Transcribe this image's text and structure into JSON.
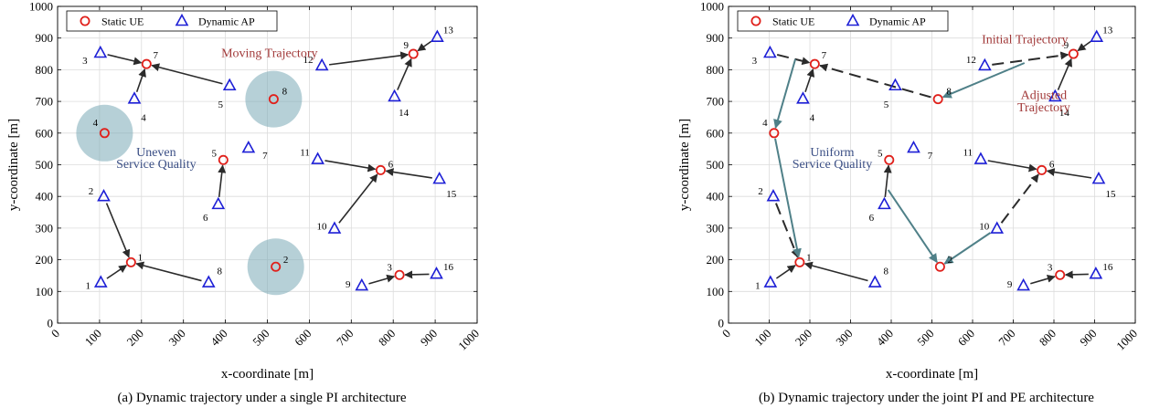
{
  "chart_data": [
    {
      "type": "scatter",
      "caption": "(a) Dynamic trajectory under a single PI architecture",
      "xlabel": "x-coordinate [m]",
      "ylabel": "y-coordinate [m]",
      "xlim": [
        0,
        1000
      ],
      "ylim": [
        0,
        1000
      ],
      "xticks": [
        "0",
        "100",
        "200",
        "300",
        "400",
        "500",
        "600",
        "700",
        "800",
        "900",
        "1000"
      ],
      "yticks": [
        "0",
        "100",
        "200",
        "300",
        "400",
        "500",
        "600",
        "700",
        "800",
        "900",
        "1000"
      ],
      "grid": true,
      "legend": {
        "placement": "top-left",
        "entries": [
          "Static UE",
          "Dynamic AP"
        ]
      },
      "ue": [
        {
          "id": "1",
          "x": 175,
          "y": 192
        },
        {
          "id": "2",
          "x": 520,
          "y": 178
        },
        {
          "id": "3",
          "x": 815,
          "y": 152
        },
        {
          "id": "4",
          "x": 112,
          "y": 600
        },
        {
          "id": "5",
          "x": 395,
          "y": 515
        },
        {
          "id": "6",
          "x": 770,
          "y": 483
        },
        {
          "id": "7",
          "x": 212,
          "y": 818
        },
        {
          "id": "8",
          "x": 515,
          "y": 707
        },
        {
          "id": "9",
          "x": 848,
          "y": 850
        }
      ],
      "ap": [
        {
          "id": "1",
          "x": 103,
          "y": 128
        },
        {
          "id": "2",
          "x": 110,
          "y": 400
        },
        {
          "id": "3",
          "x": 102,
          "y": 853
        },
        {
          "id": "4",
          "x": 183,
          "y": 708
        },
        {
          "id": "5",
          "x": 410,
          "y": 750
        },
        {
          "id": "6",
          "x": 383,
          "y": 375
        },
        {
          "id": "7",
          "x": 455,
          "y": 553
        },
        {
          "id": "8",
          "x": 360,
          "y": 128
        },
        {
          "id": "9",
          "x": 725,
          "y": 118
        },
        {
          "id": "10",
          "x": 660,
          "y": 298
        },
        {
          "id": "11",
          "x": 620,
          "y": 517
        },
        {
          "id": "12",
          "x": 630,
          "y": 813
        },
        {
          "id": "13",
          "x": 905,
          "y": 903
        },
        {
          "id": "14",
          "x": 803,
          "y": 715
        },
        {
          "id": "15",
          "x": 910,
          "y": 455
        },
        {
          "id": "16",
          "x": 903,
          "y": 155
        }
      ],
      "highlight_ues": [
        "2",
        "4",
        "8"
      ],
      "solid_arrows": [
        {
          "from": [
            103,
            128
          ],
          "to": [
            175,
            192
          ]
        },
        {
          "from": [
            360,
            128
          ],
          "to": [
            175,
            192
          ]
        },
        {
          "from": [
            110,
            400
          ],
          "to": [
            175,
            192
          ]
        },
        {
          "from": [
            102,
            853
          ],
          "to": [
            212,
            818
          ]
        },
        {
          "from": [
            183,
            708
          ],
          "to": [
            212,
            818
          ]
        },
        {
          "from": [
            410,
            750
          ],
          "to": [
            212,
            818
          ]
        },
        {
          "from": [
            383,
            375
          ],
          "to": [
            395,
            515
          ]
        },
        {
          "from": [
            630,
            813
          ],
          "to": [
            848,
            850
          ]
        },
        {
          "from": [
            905,
            903
          ],
          "to": [
            848,
            850
          ]
        },
        {
          "from": [
            803,
            715
          ],
          "to": [
            848,
            850
          ]
        },
        {
          "from": [
            620,
            517
          ],
          "to": [
            770,
            483
          ]
        },
        {
          "from": [
            660,
            298
          ],
          "to": [
            770,
            483
          ]
        },
        {
          "from": [
            910,
            455
          ],
          "to": [
            770,
            483
          ]
        },
        {
          "from": [
            725,
            118
          ],
          "to": [
            815,
            152
          ]
        },
        {
          "from": [
            903,
            155
          ],
          "to": [
            815,
            152
          ]
        }
      ],
      "dashed_arrows": [],
      "teal_arrows": [],
      "annotations": [
        {
          "text": "Moving Trajectory",
          "x": 505,
          "y": 840,
          "color": "#a23a3a",
          "anchor": "middle"
        },
        {
          "text": "Uneven",
          "x": 235,
          "y": 528,
          "color": "#3b4f85",
          "anchor": "middle"
        },
        {
          "text": "Service Quality",
          "x": 235,
          "y": 490,
          "color": "#3b4f85",
          "anchor": "middle"
        }
      ]
    },
    {
      "type": "scatter",
      "caption": "(b) Dynamic trajectory under the joint PI and PE architecture",
      "xlabel": "x-coordinate [m]",
      "ylabel": "y-coordinate [m]",
      "xlim": [
        0,
        1000
      ],
      "ylim": [
        0,
        1000
      ],
      "xticks": [
        "0",
        "100",
        "200",
        "300",
        "400",
        "500",
        "600",
        "700",
        "800",
        "900",
        "1000"
      ],
      "yticks": [
        "0",
        "100",
        "200",
        "300",
        "400",
        "500",
        "600",
        "700",
        "800",
        "900",
        "1000"
      ],
      "grid": true,
      "legend": {
        "placement": "top-left",
        "entries": [
          "Static UE",
          "Dynamic AP"
        ]
      },
      "ue": [
        {
          "id": "1",
          "x": 175,
          "y": 192
        },
        {
          "id": "2",
          "x": 520,
          "y": 178
        },
        {
          "id": "3",
          "x": 815,
          "y": 152
        },
        {
          "id": "4",
          "x": 112,
          "y": 600
        },
        {
          "id": "5",
          "x": 395,
          "y": 515
        },
        {
          "id": "6",
          "x": 770,
          "y": 483
        },
        {
          "id": "7",
          "x": 212,
          "y": 818
        },
        {
          "id": "8",
          "x": 515,
          "y": 707
        },
        {
          "id": "9",
          "x": 848,
          "y": 850
        }
      ],
      "ap": [
        {
          "id": "1",
          "x": 103,
          "y": 128
        },
        {
          "id": "2",
          "x": 110,
          "y": 400
        },
        {
          "id": "3",
          "x": 102,
          "y": 853
        },
        {
          "id": "4",
          "x": 183,
          "y": 708
        },
        {
          "id": "5",
          "x": 410,
          "y": 750
        },
        {
          "id": "6",
          "x": 383,
          "y": 375
        },
        {
          "id": "7",
          "x": 455,
          "y": 553
        },
        {
          "id": "8",
          "x": 360,
          "y": 128
        },
        {
          "id": "9",
          "x": 725,
          "y": 118
        },
        {
          "id": "10",
          "x": 660,
          "y": 298
        },
        {
          "id": "11",
          "x": 620,
          "y": 517
        },
        {
          "id": "12",
          "x": 630,
          "y": 813
        },
        {
          "id": "13",
          "x": 905,
          "y": 903
        },
        {
          "id": "14",
          "x": 803,
          "y": 715
        },
        {
          "id": "15",
          "x": 910,
          "y": 455
        },
        {
          "id": "16",
          "x": 903,
          "y": 155
        }
      ],
      "highlight_ues": [],
      "solid_arrows": [
        {
          "from": [
            103,
            128
          ],
          "to": [
            175,
            192
          ]
        },
        {
          "from": [
            360,
            128
          ],
          "to": [
            175,
            192
          ]
        },
        {
          "from": [
            383,
            375
          ],
          "to": [
            395,
            515
          ]
        },
        {
          "from": [
            620,
            517
          ],
          "to": [
            770,
            483
          ]
        },
        {
          "from": [
            910,
            455
          ],
          "to": [
            770,
            483
          ]
        },
        {
          "from": [
            905,
            903
          ],
          "to": [
            848,
            850
          ]
        },
        {
          "from": [
            803,
            715
          ],
          "to": [
            848,
            850
          ]
        },
        {
          "from": [
            725,
            118
          ],
          "to": [
            815,
            152
          ]
        },
        {
          "from": [
            903,
            155
          ],
          "to": [
            815,
            152
          ]
        },
        {
          "from": [
            183,
            708
          ],
          "to": [
            212,
            818
          ]
        }
      ],
      "dashed_arrows": [
        {
          "from": [
            102,
            853
          ],
          "to": [
            212,
            818
          ]
        },
        {
          "from": [
            515,
            707
          ],
          "to": [
            212,
            818
          ]
        },
        {
          "from": [
            110,
            400
          ],
          "to": [
            175,
            192
          ]
        },
        {
          "from": [
            630,
            813
          ],
          "to": [
            848,
            850
          ]
        },
        {
          "from": [
            660,
            298
          ],
          "to": [
            770,
            483
          ]
        }
      ],
      "teal_arrows": [
        {
          "from": [
            168,
            850
          ],
          "to": [
            112,
            600
          ]
        },
        {
          "from": [
            112,
            600
          ],
          "to": [
            175,
            192
          ]
        },
        {
          "from": [
            385,
            435
          ],
          "to": [
            520,
            178
          ]
        },
        {
          "from": [
            655,
            295
          ],
          "to": [
            520,
            178
          ]
        },
        {
          "from": [
            740,
            828
          ],
          "to": [
            515,
            707
          ]
        }
      ],
      "annotations": [
        {
          "text": "Initial Trajectory",
          "x": 835,
          "y": 883,
          "color": "#a23a3a",
          "anchor": "end"
        },
        {
          "text": "Adjusted",
          "x": 775,
          "y": 707,
          "color": "#a23a3a",
          "anchor": "middle"
        },
        {
          "text": "Trajectory",
          "x": 775,
          "y": 668,
          "color": "#a23a3a",
          "anchor": "middle"
        },
        {
          "text": "Uniform",
          "x": 255,
          "y": 528,
          "color": "#3b4f85",
          "anchor": "middle"
        },
        {
          "text": "Service Quality",
          "x": 255,
          "y": 490,
          "color": "#3b4f85",
          "anchor": "middle"
        }
      ]
    }
  ],
  "colors": {
    "ue": "#e0201b",
    "ap": "#1d1fd6",
    "arrow": "#2b2b2b",
    "teal": "#4f8088",
    "circle_fill": "#7aaab6",
    "grid": "#dcdcdc"
  }
}
